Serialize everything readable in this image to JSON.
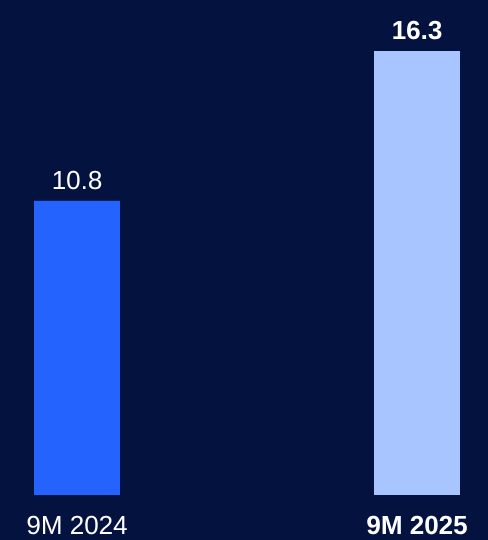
{
  "chart_data": {
    "type": "bar",
    "title": "",
    "xlabel": "",
    "ylabel": "",
    "categories": [
      "9M 2024",
      "9M 2025"
    ],
    "values": [
      10.8,
      16.3
    ],
    "value_labels": [
      "10.8",
      "16.3"
    ],
    "ylim": [
      0,
      16.3
    ],
    "grid": false,
    "legend": "none",
    "colors": {
      "background": "#041240",
      "bars": [
        "#2563FF",
        "#A8C5FF"
      ],
      "text": "#FFFFFF"
    },
    "emphasis": [
      false,
      true
    ]
  }
}
